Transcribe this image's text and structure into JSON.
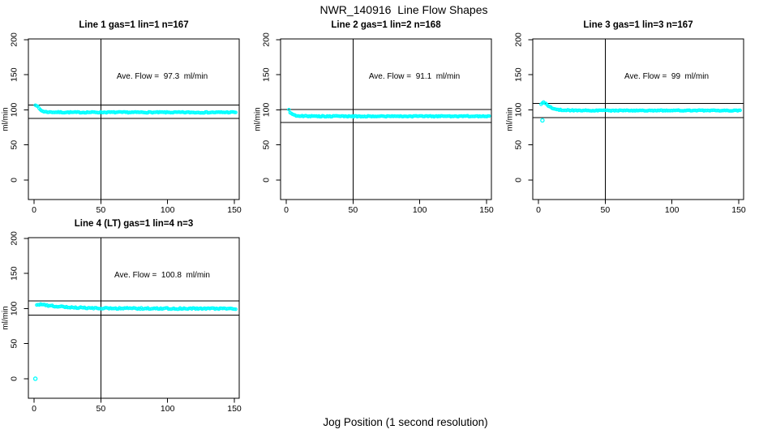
{
  "figure": {
    "title": "NWR_140916  Line Flow Shapes",
    "xlabel": "Jog Position (1 second resolution)",
    "point_color": "#00FFFF",
    "axis_color": "#000000",
    "background": "#FFFFFF"
  },
  "chart_data": [
    {
      "type": "scatter",
      "title": "Line 1 gas=1 lin=1 n=167",
      "annotation": "Ave. Flow =  97.3  ml/min",
      "ave_flow_ml_min": 97.3,
      "n": 167,
      "ylabel": "ml/min",
      "xticks": [
        0,
        50,
        100,
        150
      ],
      "yticks": [
        0,
        50,
        100,
        150,
        200
      ],
      "xlim": [
        0,
        150
      ],
      "ylim": [
        0,
        200
      ],
      "vline_x": 50,
      "hlines": [
        107.0,
        87.6
      ],
      "x_range": [
        1,
        151
      ],
      "points_n": 167,
      "jitter": 0.7,
      "keypoints": [
        [
          1,
          107.3
        ],
        [
          2,
          106.2
        ],
        [
          3,
          103.8
        ],
        [
          4,
          101.4
        ],
        [
          5,
          99.6
        ],
        [
          6,
          98.4
        ],
        [
          7,
          97.7
        ],
        [
          8,
          97.3
        ],
        [
          10,
          96.9
        ],
        [
          15,
          96.6
        ],
        [
          20,
          96.5
        ],
        [
          30,
          96.4
        ],
        [
          50,
          96.5
        ],
        [
          75,
          96.4
        ],
        [
          100,
          96.4
        ],
        [
          125,
          96.3
        ],
        [
          151,
          96.5
        ]
      ],
      "outliers": []
    },
    {
      "type": "scatter",
      "title": "Line 2 gas=1 lin=2 n=168",
      "annotation": "Ave. Flow =  91.1  ml/min",
      "ave_flow_ml_min": 91.1,
      "n": 168,
      "ylabel": "ml/min",
      "xticks": [
        0,
        50,
        100,
        150
      ],
      "yticks": [
        0,
        50,
        100,
        150,
        200
      ],
      "xlim": [
        0,
        150
      ],
      "ylim": [
        0,
        200
      ],
      "vline_x": 50,
      "hlines": [
        100.2,
        82.0
      ],
      "x_range": [
        2,
        152
      ],
      "points_n": 168,
      "jitter": 0.7,
      "keypoints": [
        [
          2,
          100.4
        ],
        [
          3,
          95.8
        ],
        [
          4,
          93.9
        ],
        [
          5,
          92.8
        ],
        [
          6,
          92.2
        ],
        [
          7,
          91.8
        ],
        [
          8,
          91.5
        ],
        [
          10,
          91.2
        ],
        [
          15,
          91.0
        ],
        [
          20,
          90.9
        ],
        [
          30,
          90.8
        ],
        [
          50,
          90.8
        ],
        [
          75,
          90.8
        ],
        [
          100,
          90.8
        ],
        [
          125,
          90.8
        ],
        [
          152,
          90.9
        ]
      ],
      "outliers": []
    },
    {
      "type": "scatter",
      "title": "Line 3 gas=1 lin=3 n=167",
      "annotation": "Ave. Flow =  99  ml/min",
      "ave_flow_ml_min": 99,
      "n": 167,
      "ylabel": "ml/min",
      "xticks": [
        0,
        50,
        100,
        150
      ],
      "yticks": [
        0,
        50,
        100,
        150,
        200
      ],
      "xlim": [
        0,
        150
      ],
      "ylim": [
        0,
        200
      ],
      "vline_x": 50,
      "hlines": [
        108.9,
        89.1
      ],
      "x_range": [
        2,
        151
      ],
      "points_n": 166,
      "jitter": 0.6,
      "keypoints": [
        [
          2,
          107.8
        ],
        [
          3,
          110.2
        ],
        [
          4,
          110.6
        ],
        [
          5,
          109.8
        ],
        [
          6,
          108.3
        ],
        [
          7,
          106.5
        ],
        [
          8,
          104.9
        ],
        [
          9,
          103.6
        ],
        [
          10,
          102.6
        ],
        [
          12,
          101.2
        ],
        [
          14,
          100.4
        ],
        [
          16,
          99.9
        ],
        [
          20,
          99.4
        ],
        [
          25,
          99.2
        ],
        [
          30,
          99.1
        ],
        [
          50,
          99.0
        ],
        [
          75,
          99.0
        ],
        [
          100,
          99.1
        ],
        [
          125,
          99.0
        ],
        [
          151,
          99.0
        ]
      ],
      "outliers": [
        [
          3,
          85
        ]
      ]
    },
    {
      "type": "scatter",
      "title": "Line 4 (LT) gas=1 lin=4 n=3",
      "annotation": "Ave. Flow =  100.8  ml/min",
      "ave_flow_ml_min": 100.8,
      "n": 3,
      "ylabel": "ml/min",
      "xticks": [
        0,
        50,
        100,
        150
      ],
      "yticks": [
        0,
        50,
        100,
        150,
        200
      ],
      "xlim": [
        0,
        150
      ],
      "ylim": [
        0,
        200
      ],
      "vline_x": 50,
      "hlines": [
        110.9,
        90.7
      ],
      "x_range": [
        2,
        151
      ],
      "points_n": 155,
      "jitter": 0.9,
      "keypoints": [
        [
          2,
          104.6
        ],
        [
          3,
          105.4
        ],
        [
          4,
          105.9
        ],
        [
          5,
          105.8
        ],
        [
          6,
          105.4
        ],
        [
          8,
          104.8
        ],
        [
          10,
          104.3
        ],
        [
          15,
          103.4
        ],
        [
          20,
          102.7
        ],
        [
          25,
          102.1
        ],
        [
          30,
          101.6
        ],
        [
          35,
          101.2
        ],
        [
          40,
          100.9
        ],
        [
          45,
          100.7
        ],
        [
          50,
          100.5
        ],
        [
          60,
          100.3
        ],
        [
          70,
          100.2
        ],
        [
          80,
          100.1
        ],
        [
          90,
          100.0
        ],
        [
          100,
          100.0
        ],
        [
          110,
          99.9
        ],
        [
          120,
          99.9
        ],
        [
          130,
          99.9
        ],
        [
          140,
          99.8
        ],
        [
          151,
          99.8
        ]
      ],
      "outliers": [
        [
          1,
          0
        ]
      ]
    }
  ]
}
